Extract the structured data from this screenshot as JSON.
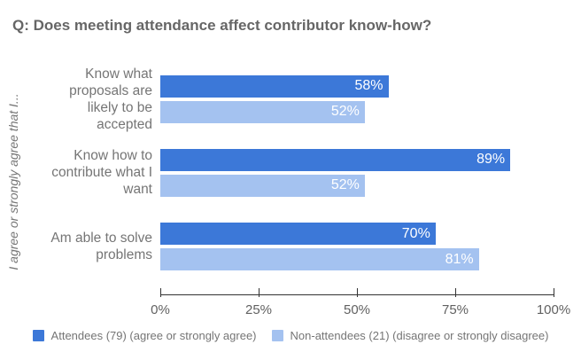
{
  "title": "Q: Does meeting attendance affect contributor know-how?",
  "y_axis_label": "I agree or strongly agree that I...",
  "category_label_lines": [
    [
      "Know what",
      "proposals are",
      "likely to be",
      "accepted"
    ],
    [
      "Know how to",
      "contribute what I",
      "want"
    ],
    [
      "Am able to solve",
      "problems"
    ]
  ],
  "colors": {
    "attendees_bar": "#3C78D8",
    "non_attendees_bar": "#A4C2F0",
    "title_text": "#666666",
    "label_text": "#757575",
    "tick_text": "#616161",
    "axis_line": "#333333",
    "bar_value_text": "#ffffff",
    "background": "#ffffff"
  },
  "chart_data": {
    "type": "bar",
    "orientation": "horizontal",
    "title": "Q: Does meeting attendance affect contributor know-how?",
    "ylabel": "I agree or strongly agree that I...",
    "xlabel": "",
    "categories": [
      "Know what proposals are likely to be accepted",
      "Know how to contribute what I want",
      "Am able to solve problems"
    ],
    "series": [
      {
        "name": "Attendees (79) (agree or strongly agree)",
        "color": "#3C78D8",
        "values": [
          58,
          89,
          70
        ]
      },
      {
        "name": "Non-attendees (21) (disagree or strongly disagree)",
        "color": "#A4C2F0",
        "values": [
          52,
          52,
          81
        ]
      }
    ],
    "value_labels": [
      [
        "58%",
        "89%",
        "70%"
      ],
      [
        "52%",
        "52%",
        "81%"
      ]
    ],
    "x_ticks": [
      "0%",
      "25%",
      "50%",
      "75%",
      "100%"
    ],
    "xlim": [
      0,
      100
    ],
    "grid": false,
    "legend_position": "bottom"
  }
}
